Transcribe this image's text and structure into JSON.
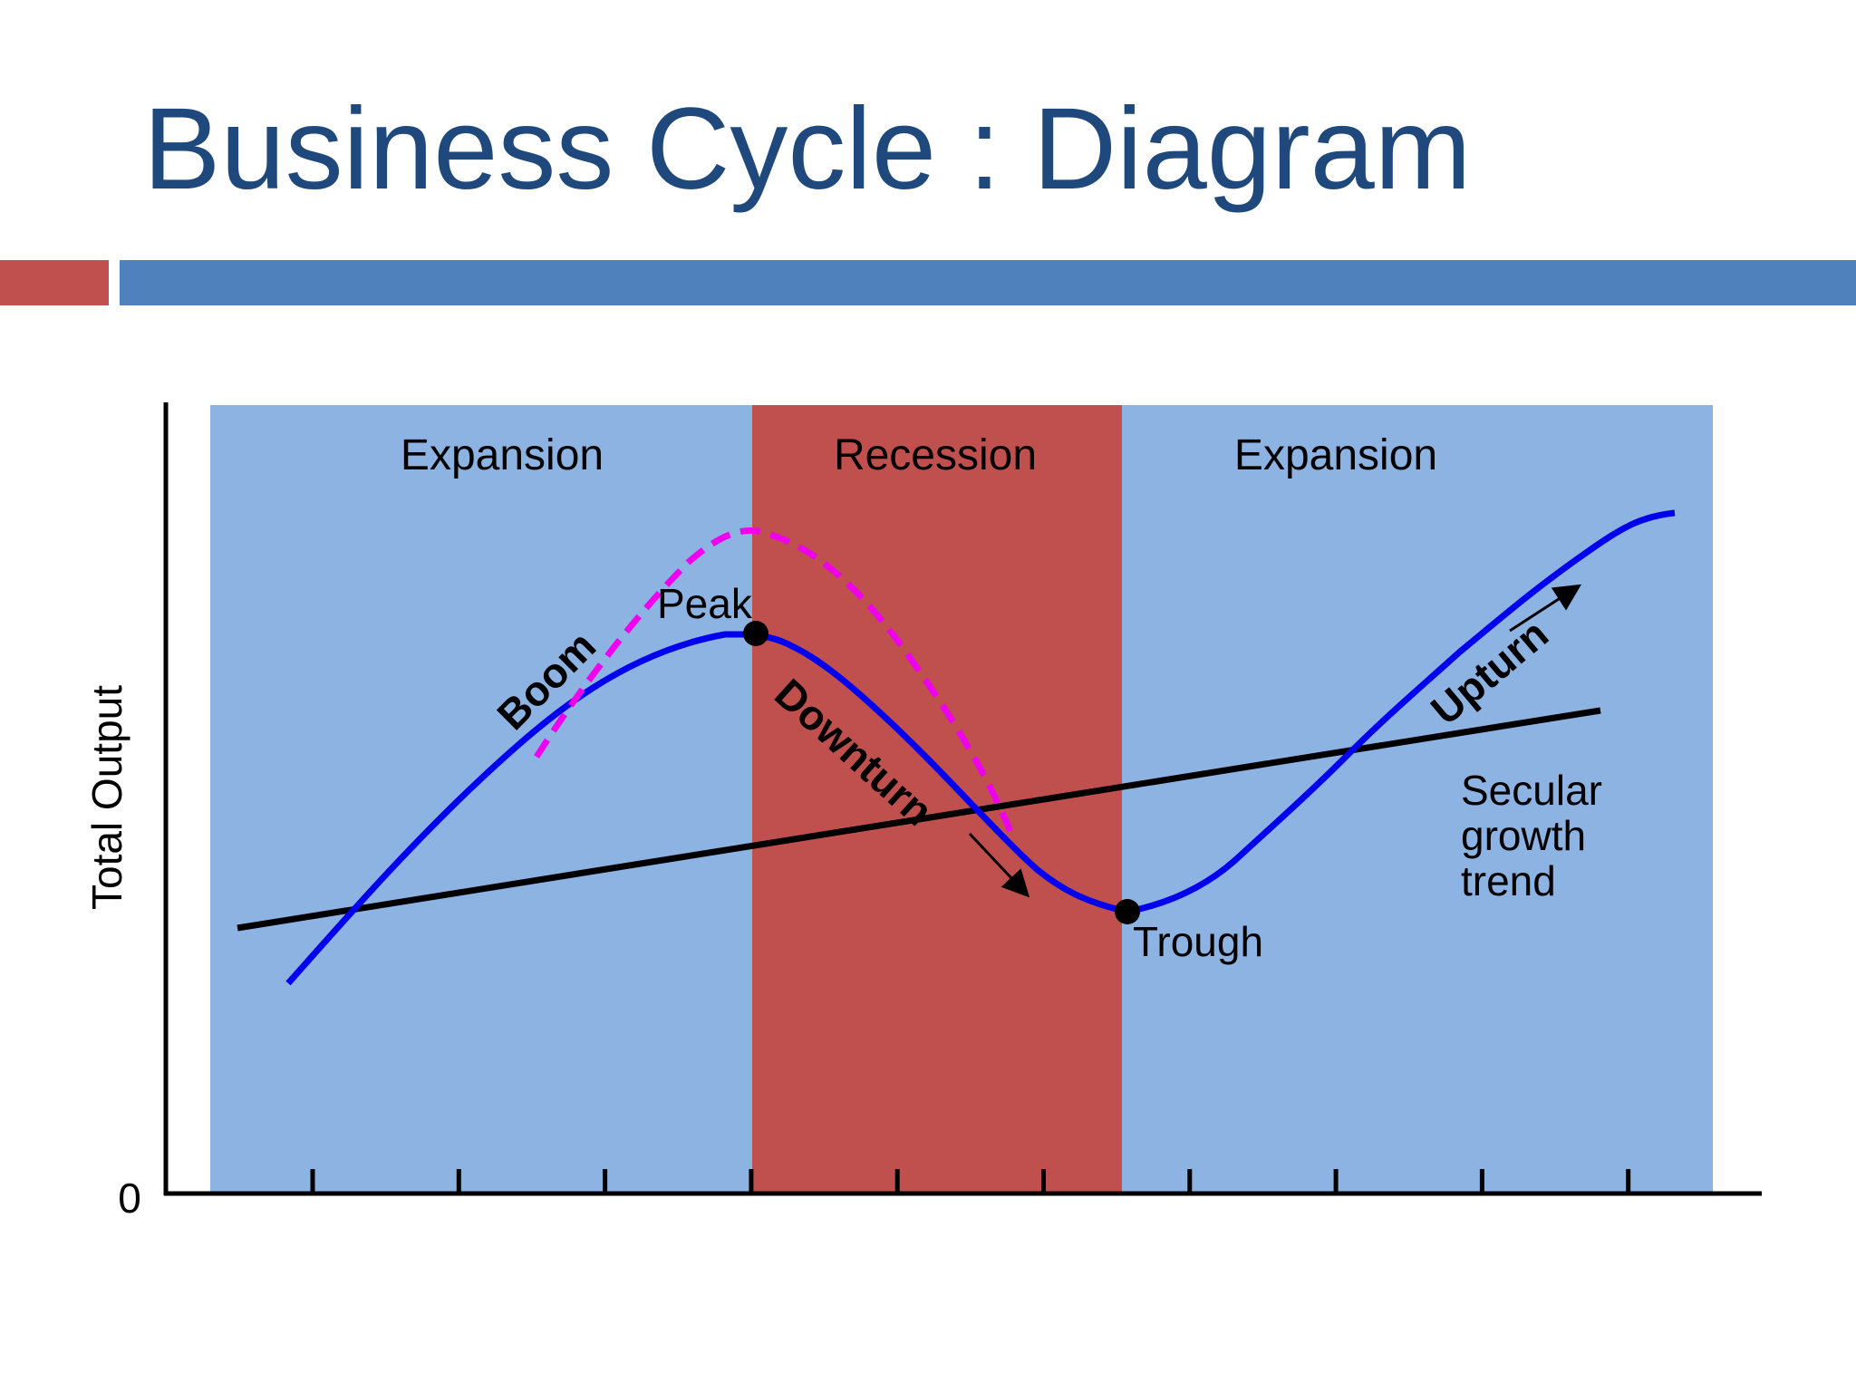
{
  "title": "Business Cycle : Diagram",
  "colors": {
    "title": "#1f497d",
    "accent_red": "#c0504d",
    "accent_blue": "#4f81bd",
    "expansion_band": "#8db3e2",
    "recession_band": "#c0504d",
    "cycle_line": "#0000ee",
    "boom_line": "#ee00ee",
    "trend_line": "#000000"
  },
  "diagram": {
    "phases": [
      {
        "label": "Expansion"
      },
      {
        "label": "Recession"
      },
      {
        "label": "Expansion"
      }
    ],
    "y_axis_label": "Total Output",
    "origin_label": "0",
    "peak_label": "Peak",
    "trough_label": "Trough",
    "boom_label": "Boom",
    "downturn_label": "Downturn",
    "upturn_label": "Upturn",
    "trend_label": [
      "Secular",
      "growth",
      "trend"
    ]
  }
}
